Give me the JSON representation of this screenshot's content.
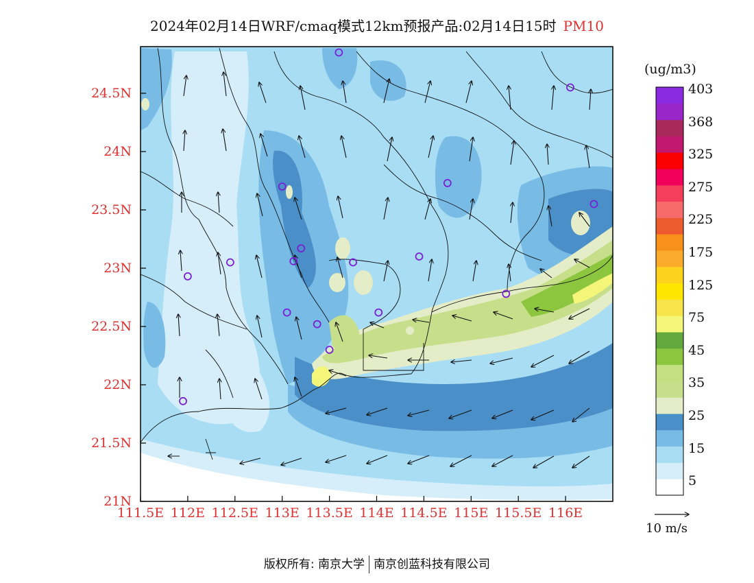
{
  "title": {
    "text": "2024年02月14日WRF/cmaq模式12km预报产品:02月14日15时",
    "pollutant": "PM10"
  },
  "map": {
    "lon_range": [
      111.5,
      116.5
    ],
    "lat_range": [
      21.0,
      24.9
    ],
    "lat_ticks": [
      "21N",
      "21.5N",
      "22N",
      "22.5N",
      "23N",
      "23.5N",
      "24N",
      "24.5N"
    ],
    "lat_tick_values": [
      21.0,
      21.5,
      22.0,
      22.5,
      23.0,
      23.5,
      24.0,
      24.5
    ],
    "lon_ticks": [
      "111.5E",
      "112E",
      "112.5E",
      "113E",
      "113.5E",
      "114E",
      "114.5E",
      "115E",
      "115.5E",
      "116E"
    ],
    "lon_tick_values": [
      111.5,
      112.0,
      112.5,
      113.0,
      113.5,
      114.0,
      114.5,
      115.0,
      115.5,
      116.0
    ],
    "stations": [
      {
        "lon": 113.6,
        "lat": 24.85
      },
      {
        "lon": 116.05,
        "lat": 24.55
      },
      {
        "lon": 113.0,
        "lat": 23.7
      },
      {
        "lon": 114.75,
        "lat": 23.73
      },
      {
        "lon": 116.3,
        "lat": 23.55
      },
      {
        "lon": 113.2,
        "lat": 23.17
      },
      {
        "lon": 113.12,
        "lat": 23.06
      },
      {
        "lon": 113.75,
        "lat": 23.05
      },
      {
        "lon": 112.45,
        "lat": 23.05
      },
      {
        "lon": 114.45,
        "lat": 23.1
      },
      {
        "lon": 112.0,
        "lat": 22.93
      },
      {
        "lon": 115.37,
        "lat": 22.78
      },
      {
        "lon": 113.05,
        "lat": 22.62
      },
      {
        "lon": 114.02,
        "lat": 22.62
      },
      {
        "lon": 113.37,
        "lat": 22.52
      },
      {
        "lon": 113.5,
        "lat": 22.3
      },
      {
        "lon": 111.95,
        "lat": 21.86
      }
    ]
  },
  "colorbar": {
    "unit": "(ug/m3)",
    "colors": [
      "#ffffff",
      "#d6eefa",
      "#a8ddf4",
      "#78bce6",
      "#4a8fc7",
      "#e4edc7",
      "#c7df8b",
      "#c2e080",
      "#8cc63f",
      "#63a83d",
      "#f4f67a",
      "#f6e44a",
      "#ffe600",
      "#fcd21f",
      "#fbab2b",
      "#f8911a",
      "#ec5a2e",
      "#f76b6b",
      "#f53f5a",
      "#f0005a",
      "#fa0000",
      "#c2186f",
      "#a92a5a",
      "#9926c6",
      "#8a2be2"
    ],
    "labels": [
      "5",
      "15",
      "25",
      "35",
      "45",
      "75",
      "125",
      "175",
      "225",
      "275",
      "325",
      "368",
      "403"
    ],
    "label_bounds": [
      1,
      3,
      5,
      7,
      9,
      11,
      13,
      15,
      17,
      19,
      21,
      23,
      25
    ]
  },
  "wind": {
    "reference_label": "10 m/s"
  },
  "footer": {
    "left": "版权所有: 南京大学",
    "right": "南京创蓝科技有限公司"
  }
}
